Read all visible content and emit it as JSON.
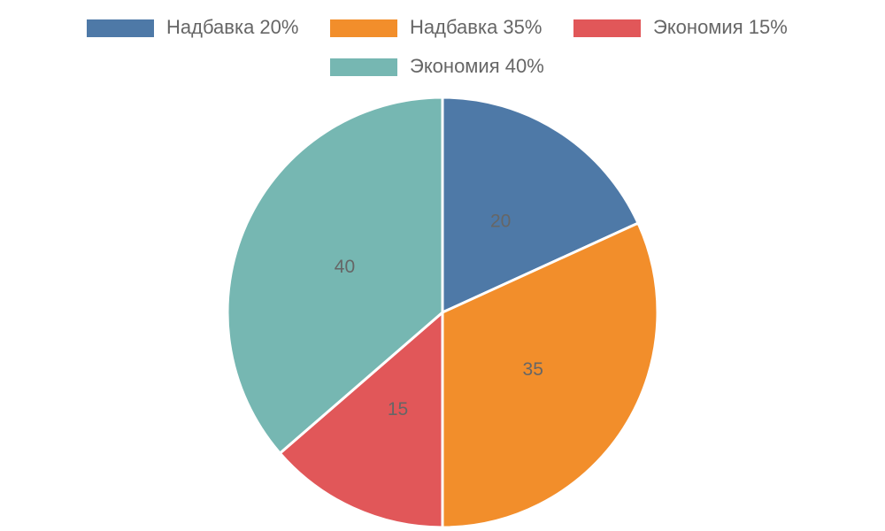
{
  "chart_data": {
    "type": "pie",
    "categories": [
      "Надбавка 20%",
      "Надбавка 35%",
      "Экономия 15%",
      "Экономия 40%"
    ],
    "values": [
      20,
      35,
      15,
      40
    ],
    "colors": [
      "#4e79a7",
      "#f28e2b",
      "#e15759",
      "#76b7b2"
    ],
    "legend": "top"
  }
}
